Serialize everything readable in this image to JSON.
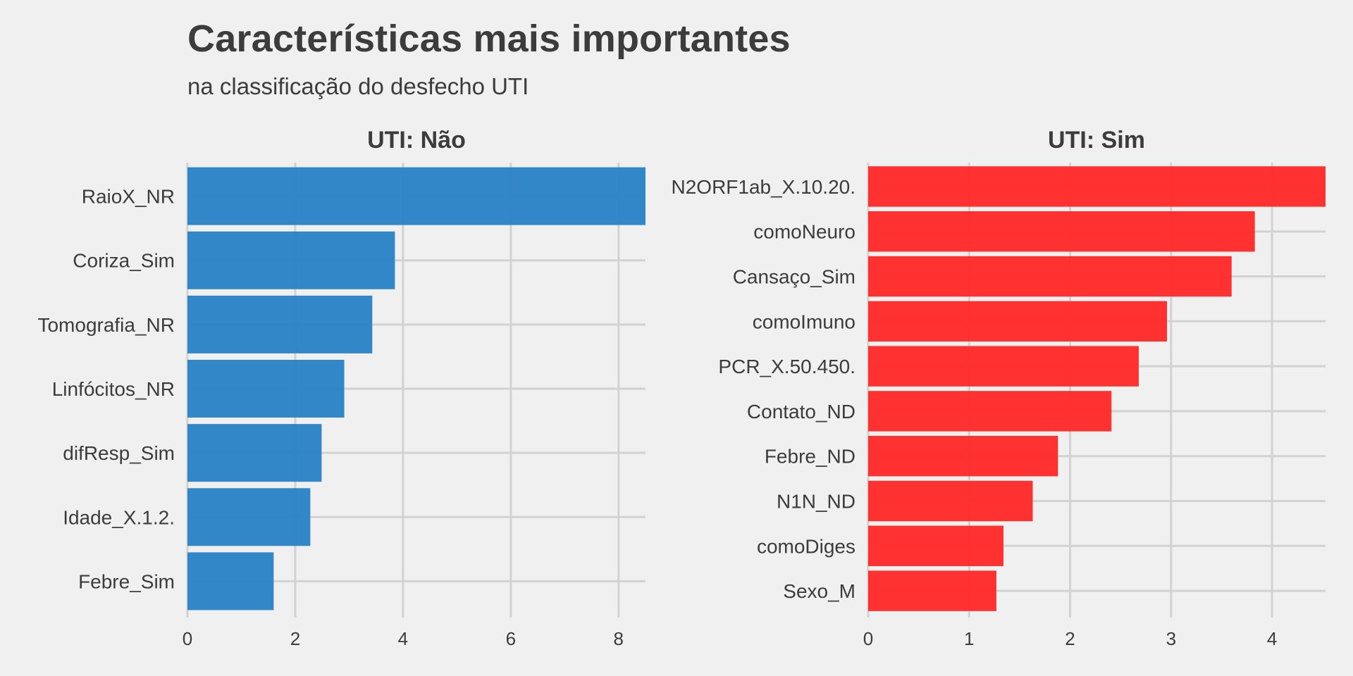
{
  "title": "Características mais importantes",
  "subtitle": "na classificação do desfecho UTI",
  "chart_data": [
    {
      "type": "bar",
      "orientation": "horizontal",
      "title": "UTI: Não",
      "color": "#2b83c6",
      "categories": [
        "RaioX_NR",
        "Coriza_Sim",
        "Tomografia_NR",
        "Linfócitos_NR",
        "difResp_Sim",
        "Idade_X.1.2.",
        "Febre_Sim"
      ],
      "values": [
        8.5,
        3.85,
        3.43,
        2.91,
        2.49,
        2.28,
        1.6
      ],
      "xlim": [
        0,
        8.5
      ],
      "xticks": [
        0,
        2,
        4,
        6,
        8
      ],
      "xlabel": "",
      "ylabel": "",
      "grid": true
    },
    {
      "type": "bar",
      "orientation": "horizontal",
      "title": "UTI: Sim",
      "color": "#ff2a2a",
      "categories": [
        "N2ORF1ab_X.10.20.",
        "comoNeuro",
        "Cansaço_Sim",
        "comoImuno",
        "PCR_X.50.450.",
        "Contato_ND",
        "Febre_ND",
        "N1N_ND",
        "comoDiges",
        "Sexo_M"
      ],
      "values": [
        4.53,
        3.83,
        3.6,
        2.96,
        2.68,
        2.41,
        1.88,
        1.63,
        1.34,
        1.27
      ],
      "xlim": [
        0,
        4.53
      ],
      "xticks": [
        0,
        1,
        2,
        3,
        4
      ],
      "xlabel": "",
      "ylabel": "",
      "grid": true
    }
  ]
}
